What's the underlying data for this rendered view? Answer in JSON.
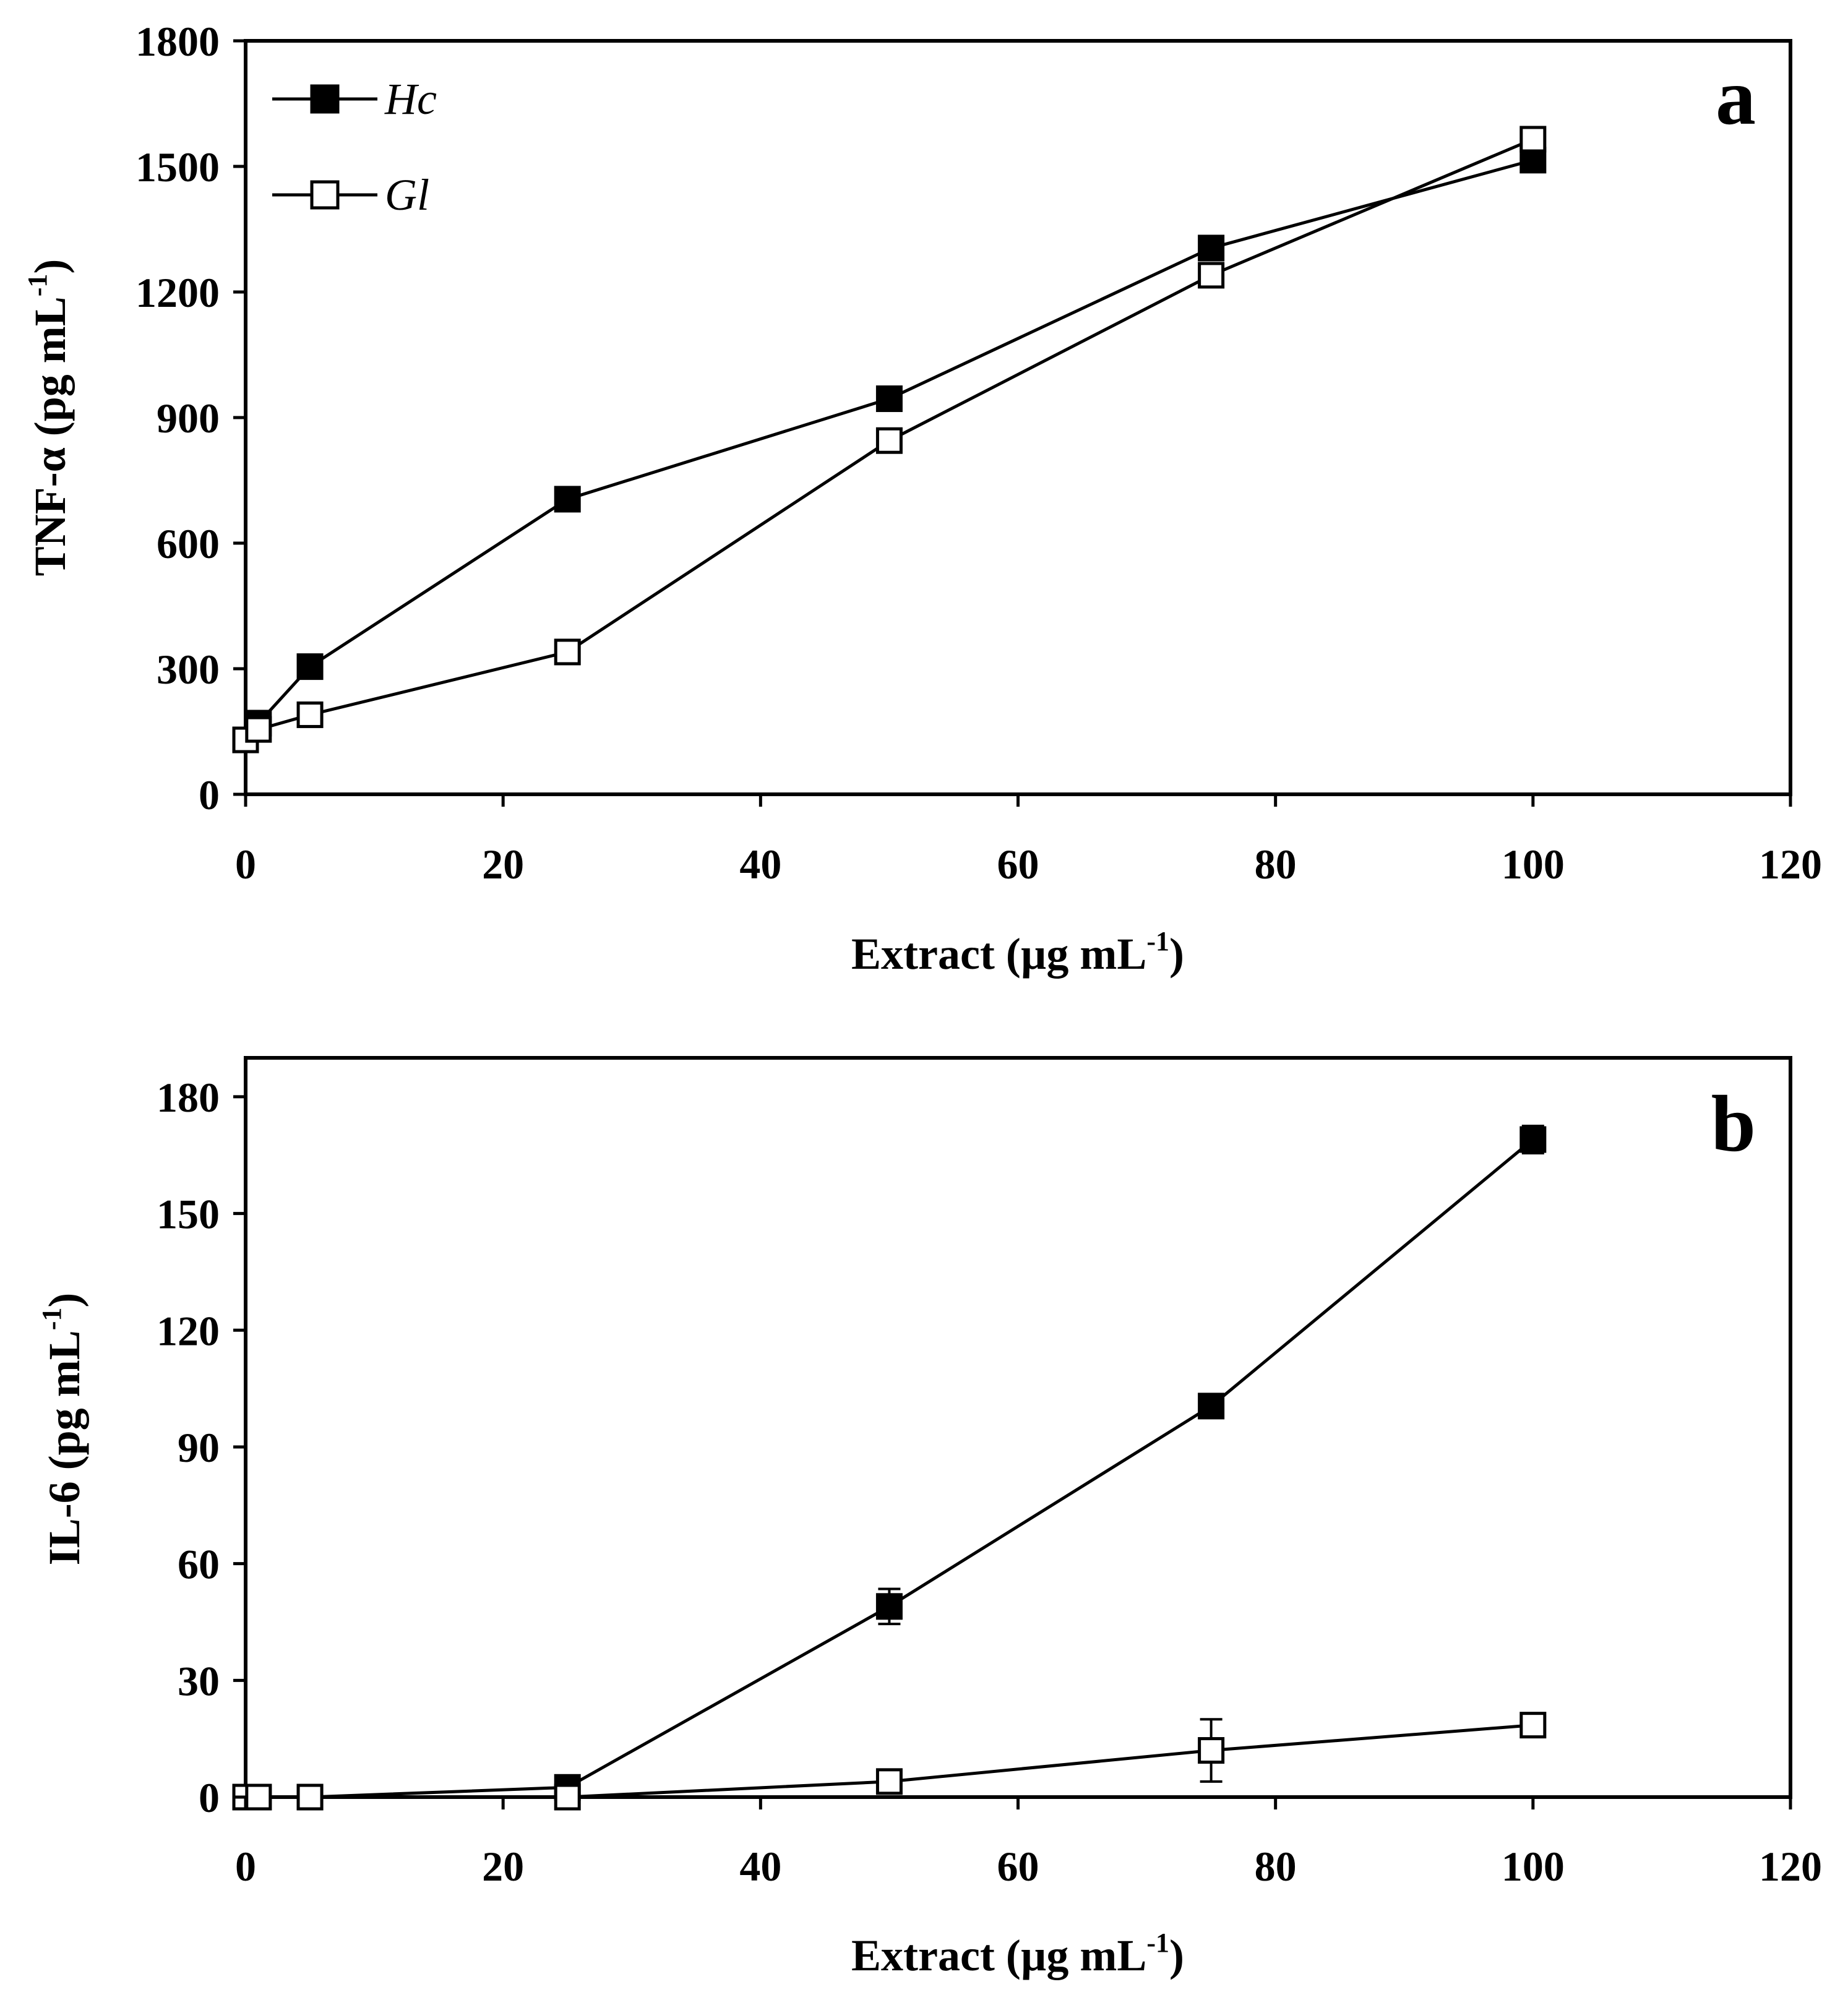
{
  "chart_data": [
    {
      "type": "line",
      "panel_label": "a",
      "xlabel": "Extract (µg mL",
      "xlabel_sup": "-1",
      "xlabel_close": ")",
      "ylabel": "TNF-α (pg mL",
      "ylabel_sup": "-1",
      "ylabel_close": ")",
      "xlim": [
        0,
        120
      ],
      "ylim": [
        0,
        1800
      ],
      "xticks": [
        "0",
        "20",
        "40",
        "60",
        "80",
        "100",
        "120"
      ],
      "yticks": [
        "0",
        "300",
        "600",
        "900",
        "1200",
        "1500",
        "1800"
      ],
      "legend_position": "top-left",
      "legend": [
        {
          "name": "Hc",
          "marker": "filled-square"
        },
        {
          "name": "Gl",
          "marker": "open-square"
        }
      ],
      "series": [
        {
          "name": "Hc",
          "marker": "filled-square",
          "x": [
            0,
            1,
            5,
            25,
            50,
            75,
            100
          ],
          "y": [
            130,
            170,
            305,
            705,
            945,
            1305,
            1515
          ],
          "err": [
            0,
            20,
            15,
            25,
            20,
            25,
            15
          ]
        },
        {
          "name": "Gl",
          "marker": "open-square",
          "x": [
            0,
            1,
            5,
            25,
            50,
            75,
            100
          ],
          "y": [
            130,
            155,
            190,
            340,
            845,
            1240,
            1565
          ],
          "err": [
            0,
            0,
            0,
            0,
            0,
            0,
            0
          ]
        }
      ]
    },
    {
      "type": "line",
      "panel_label": "b",
      "xlabel": "Extract (µg mL",
      "xlabel_sup": "-1",
      "xlabel_close": ")",
      "ylabel": "IL-6 (pg mL",
      "ylabel_sup": "-1",
      "ylabel_close": ")",
      "xlim": [
        0,
        120
      ],
      "ylim": [
        0,
        190
      ],
      "xticks": [
        "0",
        "20",
        "40",
        "60",
        "80",
        "100",
        "120"
      ],
      "yticks": [
        "0",
        "30",
        "60",
        "90",
        "120",
        "150",
        "180"
      ],
      "series": [
        {
          "name": "Hc",
          "marker": "filled-square",
          "x": [
            0,
            1,
            5,
            25,
            50,
            75,
            100
          ],
          "y": [
            0,
            0,
            0,
            2.5,
            49,
            100.5,
            169
          ],
          "err": [
            0,
            0,
            0,
            0,
            4.5,
            2,
            3.5
          ]
        },
        {
          "name": "Gl",
          "marker": "open-square",
          "x": [
            0,
            1,
            5,
            25,
            50,
            75,
            100
          ],
          "y": [
            0,
            0,
            0,
            0,
            4,
            12,
            18.5
          ],
          "err": [
            0,
            0,
            0,
            0,
            0,
            8,
            0
          ]
        }
      ]
    }
  ]
}
